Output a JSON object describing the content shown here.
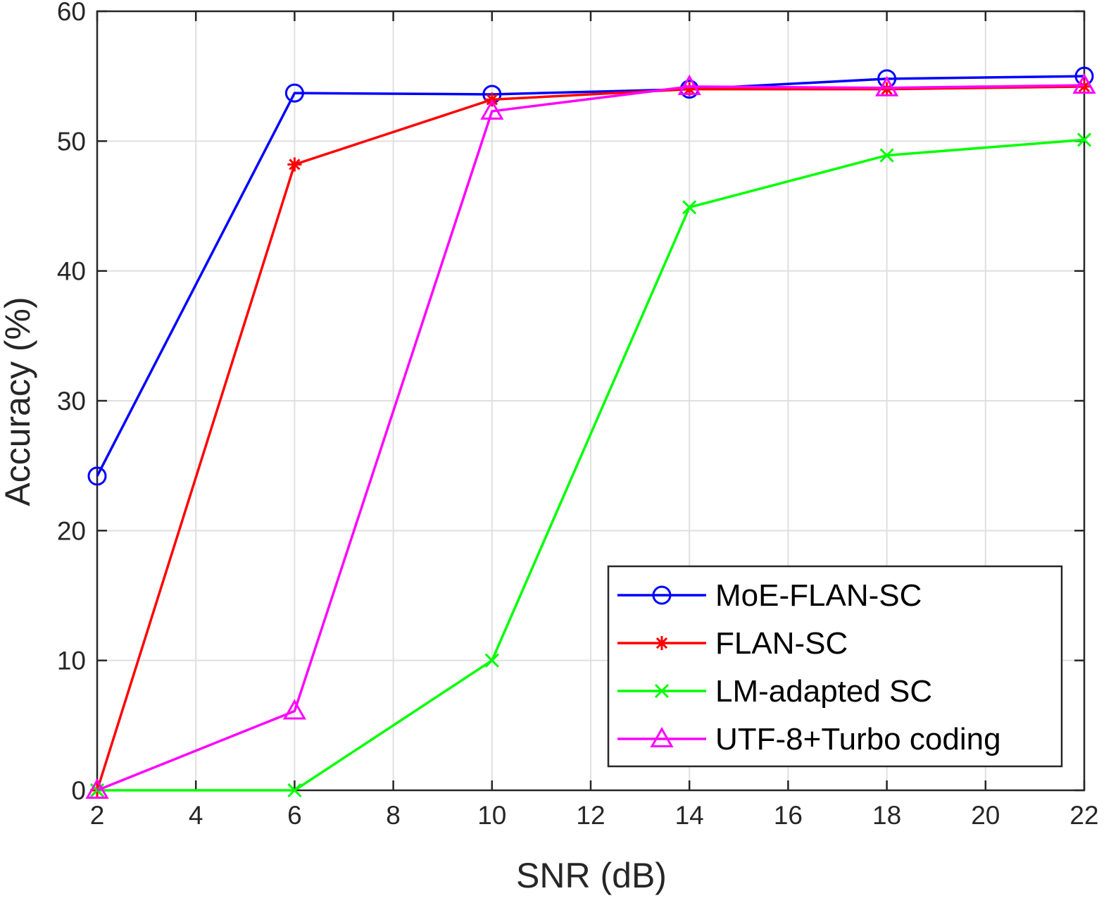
{
  "chart_data": {
    "type": "line",
    "title": "",
    "xlabel": "SNR (dB)",
    "ylabel": "Accuracy (%)",
    "xlim": [
      2,
      22
    ],
    "ylim": [
      0,
      60
    ],
    "xticks": [
      "2",
      "4",
      "6",
      "8",
      "10",
      "12",
      "14",
      "16",
      "18",
      "20",
      "22"
    ],
    "yticks": [
      "0",
      "10",
      "20",
      "30",
      "40",
      "50",
      "60"
    ],
    "grid": true,
    "legend_position": "bottom-right",
    "x": [
      2,
      6,
      10,
      14,
      18,
      22
    ],
    "series": [
      {
        "name": "MoE-FLAN-SC",
        "color": "#0000ff",
        "marker": "circle",
        "values": [
          24.2,
          53.7,
          53.6,
          54.0,
          54.8,
          55.0
        ]
      },
      {
        "name": "FLAN-SC",
        "color": "#ff0000",
        "marker": "asterisk",
        "values": [
          0.0,
          48.2,
          53.2,
          54.0,
          54.0,
          54.2
        ]
      },
      {
        "name": "LM-adapted SC",
        "color": "#00ff00",
        "marker": "cross",
        "values": [
          0.0,
          0.0,
          10.0,
          44.9,
          48.9,
          50.1
        ]
      },
      {
        "name": "UTF-8+Turbo coding",
        "color": "#ff00ff",
        "marker": "triangle",
        "values": [
          0.0,
          6.1,
          52.3,
          54.2,
          54.1,
          54.3
        ]
      }
    ]
  }
}
